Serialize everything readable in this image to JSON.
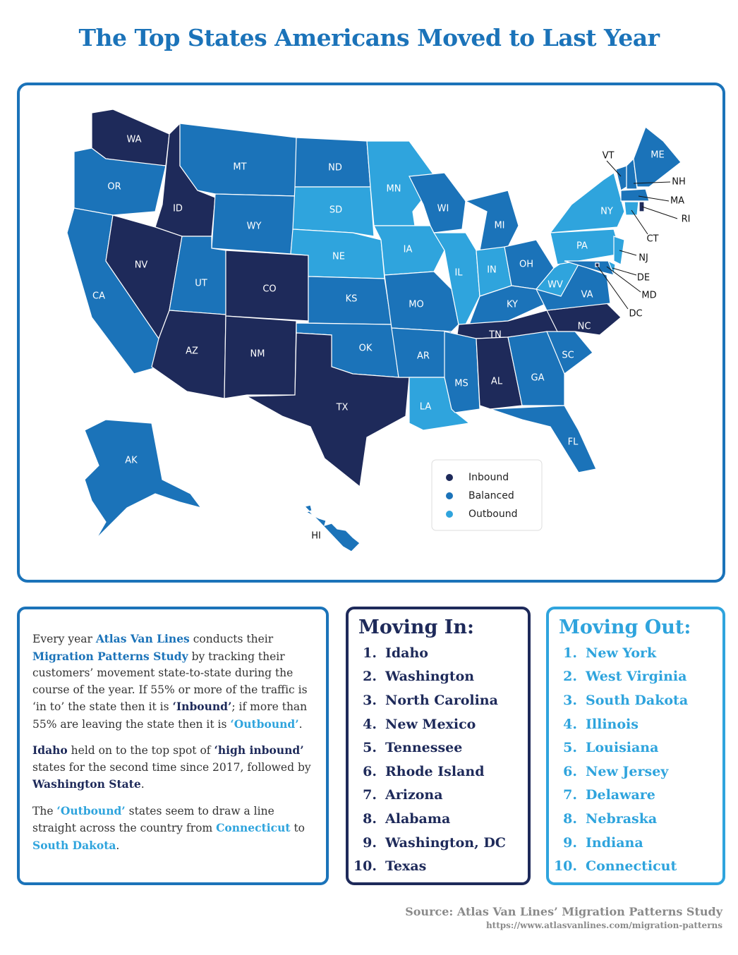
{
  "title": "The Top States Americans Moved to Last Year",
  "map": {
    "legend": [
      {
        "label": "Inbound",
        "color": "#1e2a5a"
      },
      {
        "label": "Balanced",
        "color": "#1b73b9"
      },
      {
        "label": "Outbound",
        "color": "#2fa4dd"
      }
    ],
    "states": [
      {
        "label": "WA",
        "status": "Inbound"
      },
      {
        "label": "OR",
        "status": "Balanced"
      },
      {
        "label": "CA",
        "status": "Balanced"
      },
      {
        "label": "ID",
        "status": "Inbound"
      },
      {
        "label": "NV",
        "status": "Inbound"
      },
      {
        "label": "MT",
        "status": "Balanced"
      },
      {
        "label": "WY",
        "status": "Balanced"
      },
      {
        "label": "UT",
        "status": "Balanced"
      },
      {
        "label": "AZ",
        "status": "Inbound"
      },
      {
        "label": "CO",
        "status": "Inbound"
      },
      {
        "label": "NM",
        "status": "Inbound"
      },
      {
        "label": "ND",
        "status": "Balanced"
      },
      {
        "label": "SD",
        "status": "Outbound"
      },
      {
        "label": "NE",
        "status": "Outbound"
      },
      {
        "label": "KS",
        "status": "Balanced"
      },
      {
        "label": "OK",
        "status": "Balanced"
      },
      {
        "label": "TX",
        "status": "Inbound"
      },
      {
        "label": "MN",
        "status": "Outbound"
      },
      {
        "label": "IA",
        "status": "Outbound"
      },
      {
        "label": "MO",
        "status": "Balanced"
      },
      {
        "label": "AR",
        "status": "Balanced"
      },
      {
        "label": "LA",
        "status": "Outbound"
      },
      {
        "label": "WI",
        "status": "Balanced"
      },
      {
        "label": "IL",
        "status": "Outbound"
      },
      {
        "label": "MI",
        "status": "Balanced"
      },
      {
        "label": "IN",
        "status": "Outbound"
      },
      {
        "label": "OH",
        "status": "Balanced"
      },
      {
        "label": "KY",
        "status": "Balanced"
      },
      {
        "label": "TN",
        "status": "Inbound"
      },
      {
        "label": "MS",
        "status": "Balanced"
      },
      {
        "label": "AL",
        "status": "Inbound"
      },
      {
        "label": "GA",
        "status": "Balanced"
      },
      {
        "label": "FL",
        "status": "Balanced"
      },
      {
        "label": "SC",
        "status": "Balanced"
      },
      {
        "label": "NC",
        "status": "Inbound"
      },
      {
        "label": "VA",
        "status": "Balanced"
      },
      {
        "label": "WV",
        "status": "Outbound"
      },
      {
        "label": "PA",
        "status": "Outbound"
      },
      {
        "label": "NY",
        "status": "Outbound"
      },
      {
        "label": "NJ",
        "status": "Outbound"
      },
      {
        "label": "DE",
        "status": "Outbound"
      },
      {
        "label": "MD",
        "status": "Balanced"
      },
      {
        "label": "DC",
        "status": "Inbound"
      },
      {
        "label": "VT",
        "status": "Balanced"
      },
      {
        "label": "NH",
        "status": "Balanced"
      },
      {
        "label": "ME",
        "status": "Balanced"
      },
      {
        "label": "MA",
        "status": "Balanced"
      },
      {
        "label": "CT",
        "status": "Outbound"
      },
      {
        "label": "RI",
        "status": "Inbound"
      },
      {
        "label": "AK",
        "status": "Balanced"
      },
      {
        "label": "HI",
        "status": "Balanced"
      }
    ]
  },
  "intro": {
    "paragraphs": [
      [
        {
          "text": "Every year ",
          "style": "plain"
        },
        {
          "text": "Atlas Van Lines",
          "style": "bold-blue"
        },
        {
          "text": " conducts their ",
          "style": "plain"
        },
        {
          "text": "Migration Patterns Study",
          "style": "bold-blue"
        },
        {
          "text": " by tracking their customers’ movement state-to-state during the course of the year. If 55% or more of the traffic is ‘in to’ the state then it is ",
          "style": "plain"
        },
        {
          "text": "‘Inbound’",
          "style": "bold-dark"
        },
        {
          "text": "; if more than 55% are leaving the state then it is ",
          "style": "plain"
        },
        {
          "text": "‘Outbound’",
          "style": "bold-light"
        },
        {
          "text": ".",
          "style": "plain"
        }
      ],
      [
        {
          "text": "Idaho",
          "style": "bold-dark"
        },
        {
          "text": " held on to the top spot of ",
          "style": "plain"
        },
        {
          "text": "‘high inbound’",
          "style": "bold-dark"
        },
        {
          "text": " states for the second time since 2017, followed by ",
          "style": "plain"
        },
        {
          "text": "Washington State",
          "style": "bold-dark"
        },
        {
          "text": ".",
          "style": "plain"
        }
      ],
      [
        {
          "text": "The ",
          "style": "plain"
        },
        {
          "text": "‘Outbound’",
          "style": "bold-light"
        },
        {
          "text": " states seem to draw a line straight across the country from ",
          "style": "plain"
        },
        {
          "text": "Connecticut",
          "style": "bold-light"
        },
        {
          "text": " to ",
          "style": "plain"
        },
        {
          "text": "South Dakota",
          "style": "bold-light"
        },
        {
          "text": ".",
          "style": "plain"
        }
      ]
    ]
  },
  "moving_in": {
    "title": "Moving In:",
    "items": [
      {
        "rank": "1.",
        "name": "Idaho"
      },
      {
        "rank": "2.",
        "name": "Washington"
      },
      {
        "rank": "3.",
        "name": "North Carolina"
      },
      {
        "rank": "4.",
        "name": "New Mexico"
      },
      {
        "rank": "5.",
        "name": "Tennessee"
      },
      {
        "rank": "6.",
        "name": "Rhode Island"
      },
      {
        "rank": "7.",
        "name": "Arizona"
      },
      {
        "rank": "8.",
        "name": "Alabama"
      },
      {
        "rank": "9.",
        "name": "Washington, DC"
      },
      {
        "rank": "10.",
        "name": "Texas"
      }
    ]
  },
  "moving_out": {
    "title": "Moving Out:",
    "items": [
      {
        "rank": "1.",
        "name": "New York"
      },
      {
        "rank": "2.",
        "name": "West Virginia"
      },
      {
        "rank": "3.",
        "name": "South Dakota"
      },
      {
        "rank": "4.",
        "name": "Illinois"
      },
      {
        "rank": "5.",
        "name": "Louisiana"
      },
      {
        "rank": "6.",
        "name": "New Jersey"
      },
      {
        "rank": "7.",
        "name": "Delaware"
      },
      {
        "rank": "8.",
        "name": "Nebraska"
      },
      {
        "rank": "9.",
        "name": "Indiana"
      },
      {
        "rank": "10.",
        "name": "Connecticut"
      }
    ]
  },
  "source": {
    "text": "Source: Atlas Van Lines’ Migration Patterns Study",
    "url": "https://www.atlasvanlines.com/migration-patterns"
  }
}
